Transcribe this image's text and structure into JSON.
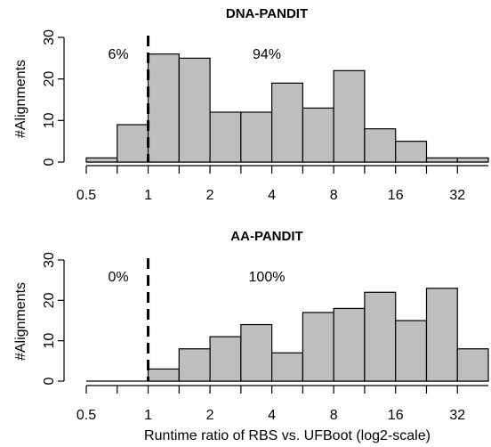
{
  "chart_data": [
    {
      "type": "bar",
      "title": "DNA-PANDIT",
      "ylabel": "#Alignments",
      "xlabel": "",
      "x_scale": "log2",
      "xlim": [
        0.5,
        45.25
      ],
      "ylim": [
        0,
        30
      ],
      "x_ticks": [
        "0.5",
        "1",
        "2",
        "4",
        "8",
        "16",
        "32"
      ],
      "y_ticks": [
        "0",
        "10",
        "20",
        "30"
      ],
      "bin_edges": [
        0.5,
        0.707,
        1,
        1.414,
        2,
        2.828,
        4,
        5.657,
        8,
        11.31,
        16,
        22.63,
        32,
        45.25
      ],
      "values": [
        1,
        9,
        26,
        25,
        12,
        12,
        19,
        13,
        22,
        8,
        5,
        1,
        1
      ],
      "cutoff_x": 1,
      "annotations": [
        "6%",
        "94%"
      ]
    },
    {
      "type": "bar",
      "title": "AA-PANDIT",
      "ylabel": "#Alignments",
      "xlabel": "Runtime ratio of RBS vs. UFBoot (log2-scale)",
      "x_scale": "log2",
      "xlim": [
        0.5,
        45.25
      ],
      "ylim": [
        0,
        30
      ],
      "x_ticks": [
        "0.5",
        "1",
        "2",
        "4",
        "8",
        "16",
        "32"
      ],
      "y_ticks": [
        "0",
        "10",
        "20",
        "30"
      ],
      "bin_edges": [
        0.5,
        0.707,
        1,
        1.414,
        2,
        2.828,
        4,
        5.657,
        8,
        11.31,
        16,
        22.63,
        32,
        45.25
      ],
      "values": [
        0,
        0,
        3,
        8,
        11,
        14,
        7,
        17,
        18,
        22,
        15,
        23,
        8
      ],
      "cutoff_x": 1,
      "annotations": [
        "0%",
        "100%"
      ]
    }
  ]
}
